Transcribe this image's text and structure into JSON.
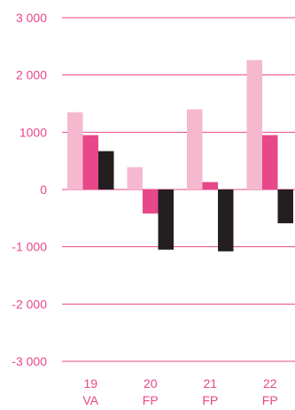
{
  "chart_data": {
    "type": "bar",
    "categories": [
      {
        "line1": "19",
        "line2": "VA"
      },
      {
        "line1": "20",
        "line2": "FP"
      },
      {
        "line1": "21",
        "line2": "FP"
      },
      {
        "line1": "22",
        "line2": "FP"
      }
    ],
    "series": [
      {
        "color": "#f5b8cf",
        "values": [
          1350,
          390,
          1400,
          2260
        ]
      },
      {
        "color": "#e8478a",
        "values": [
          950,
          -420,
          130,
          950
        ]
      },
      {
        "color": "#231f20",
        "values": [
          670,
          -1050,
          -1080,
          -590
        ]
      }
    ],
    "yticks": [
      {
        "value": 3000,
        "label": "3 000"
      },
      {
        "value": 2000,
        "label": "2 000"
      },
      {
        "value": 1000,
        "label": "1000"
      },
      {
        "value": 0,
        "label": "0"
      },
      {
        "value": -1000,
        "label": "-1 000"
      },
      {
        "value": -2000,
        "label": "-2 000"
      },
      {
        "value": -3000,
        "label": "-3 000"
      }
    ],
    "ylim": [
      -3000,
      3000
    ],
    "grid": true,
    "legend": "none",
    "colors": {
      "gridline": "#e8478a",
      "tick_text": "#e8478a",
      "category_text": "#e8478a"
    }
  }
}
